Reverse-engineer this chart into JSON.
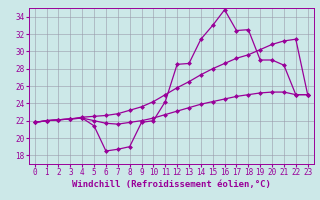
{
  "xlabel": "Windchill (Refroidissement éolien,°C)",
  "background_color": "#cce8e8",
  "grid_color": "#9999aa",
  "line_color": "#990099",
  "xlim": [
    -0.5,
    23.5
  ],
  "ylim": [
    17,
    35
  ],
  "xticks": [
    0,
    1,
    2,
    3,
    4,
    5,
    6,
    7,
    8,
    9,
    10,
    11,
    12,
    13,
    14,
    15,
    16,
    17,
    18,
    19,
    20,
    21,
    22,
    23
  ],
  "yticks": [
    18,
    20,
    22,
    24,
    26,
    28,
    30,
    32,
    34
  ],
  "line1_x": [
    0,
    1,
    2,
    3,
    4,
    5,
    6,
    7,
    8,
    9,
    10,
    11,
    12,
    13,
    14,
    15,
    16,
    17,
    18,
    19,
    20,
    21,
    22,
    23
  ],
  "line1_y": [
    21.8,
    22.0,
    22.1,
    22.2,
    22.3,
    21.4,
    18.5,
    18.7,
    19.0,
    21.8,
    22.0,
    24.2,
    28.5,
    28.6,
    31.4,
    33.0,
    34.8,
    32.4,
    32.5,
    29.0,
    29.0,
    28.4,
    25.0,
    25.0
  ],
  "line2_x": [
    0,
    1,
    2,
    3,
    4,
    5,
    6,
    7,
    8,
    9,
    10,
    11,
    12,
    13,
    14,
    15,
    16,
    17,
    18,
    19,
    20,
    21,
    22,
    23
  ],
  "line2_y": [
    21.8,
    22.0,
    22.1,
    22.2,
    22.4,
    22.5,
    22.6,
    22.8,
    23.2,
    23.6,
    24.2,
    25.0,
    25.8,
    26.5,
    27.3,
    28.0,
    28.6,
    29.2,
    29.6,
    30.2,
    30.8,
    31.2,
    31.4,
    25.0
  ],
  "line3_x": [
    0,
    1,
    2,
    3,
    4,
    5,
    6,
    7,
    8,
    9,
    10,
    11,
    12,
    13,
    14,
    15,
    16,
    17,
    18,
    19,
    20,
    21,
    22,
    23
  ],
  "line3_y": [
    21.8,
    22.0,
    22.1,
    22.2,
    22.3,
    22.0,
    21.7,
    21.6,
    21.8,
    22.0,
    22.3,
    22.7,
    23.1,
    23.5,
    23.9,
    24.2,
    24.5,
    24.8,
    25.0,
    25.2,
    25.3,
    25.3,
    25.0,
    25.0
  ],
  "markersize": 2.5,
  "linewidth": 0.9,
  "tick_fontsize": 5.5,
  "label_fontsize": 6.5
}
